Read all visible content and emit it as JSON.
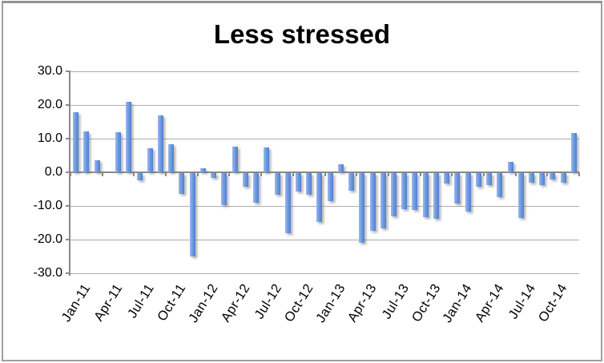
{
  "chart_data": {
    "type": "bar",
    "title": "Less stressed",
    "xlabel": "",
    "ylabel": "",
    "ylim": [
      -30,
      30
    ],
    "y_tick_labels": [
      "30.0",
      "20.0",
      "10.0",
      "0.0",
      "-10.0",
      "-20.0",
      "-30.0"
    ],
    "y_tick_values": [
      30,
      20,
      10,
      0,
      -10,
      -20,
      -30
    ],
    "x_tick_labels": [
      "Jan-11",
      "Apr-11",
      "Jul-11",
      "Oct-11",
      "Jan-12",
      "Apr-12",
      "Jul-12",
      "Oct-12",
      "Jan-13",
      "Apr-13",
      "Jul-13",
      "Oct-13",
      "Jan-14",
      "Apr-14",
      "Jul-14",
      "Oct-14"
    ],
    "categories": [
      "Jan-11",
      "Feb-11",
      "Mar-11",
      "Apr-11",
      "May-11",
      "Jun-11",
      "Jul-11",
      "Aug-11",
      "Sep-11",
      "Oct-11",
      "Nov-11",
      "Dec-11",
      "Jan-12",
      "Feb-12",
      "Mar-12",
      "Apr-12",
      "May-12",
      "Jun-12",
      "Jul-12",
      "Aug-12",
      "Sep-12",
      "Oct-12",
      "Nov-12",
      "Dec-12",
      "Jan-13",
      "Feb-13",
      "Mar-13",
      "Apr-13",
      "May-13",
      "Jun-13",
      "Jul-13",
      "Aug-13",
      "Sep-13",
      "Oct-13",
      "Nov-13",
      "Dec-13",
      "Jan-14",
      "Feb-14",
      "Mar-14",
      "Apr-14",
      "May-14",
      "Jun-14",
      "Jul-14",
      "Aug-14",
      "Sep-14",
      "Oct-14",
      "Nov-14",
      "Dec-14"
    ],
    "values": [
      17.8,
      12.2,
      3.5,
      0.0,
      11.8,
      20.9,
      -2.2,
      7.1,
      16.8,
      8.4,
      -6.1,
      -24.7,
      1.1,
      -1.5,
      -9.5,
      7.7,
      -4.0,
      -8.9,
      7.3,
      -6.3,
      -17.9,
      -5.5,
      -6.5,
      -14.5,
      -8.3,
      2.5,
      -5.2,
      -20.8,
      -17.2,
      -16.3,
      -12.9,
      -10.6,
      -11.0,
      -13.0,
      -13.6,
      -3.2,
      -9.1,
      -11.3,
      -4.1,
      -3.5,
      -7.1,
      3.0,
      -13.4,
      -2.8,
      -3.6,
      -1.9,
      -2.8,
      11.6
    ],
    "grid": "horizontal-major",
    "legend": "none",
    "bar_color": "#6f9ce2"
  },
  "colors": {
    "bar_light": "#9db9ee",
    "bar_mid": "#6f9ce2",
    "bar_dark": "#4e80d1",
    "gridline": "#adadad",
    "axis_line": "#898989",
    "frame_border": "#9e9e9e",
    "title_text": "#000000",
    "background": "#ffffff"
  }
}
